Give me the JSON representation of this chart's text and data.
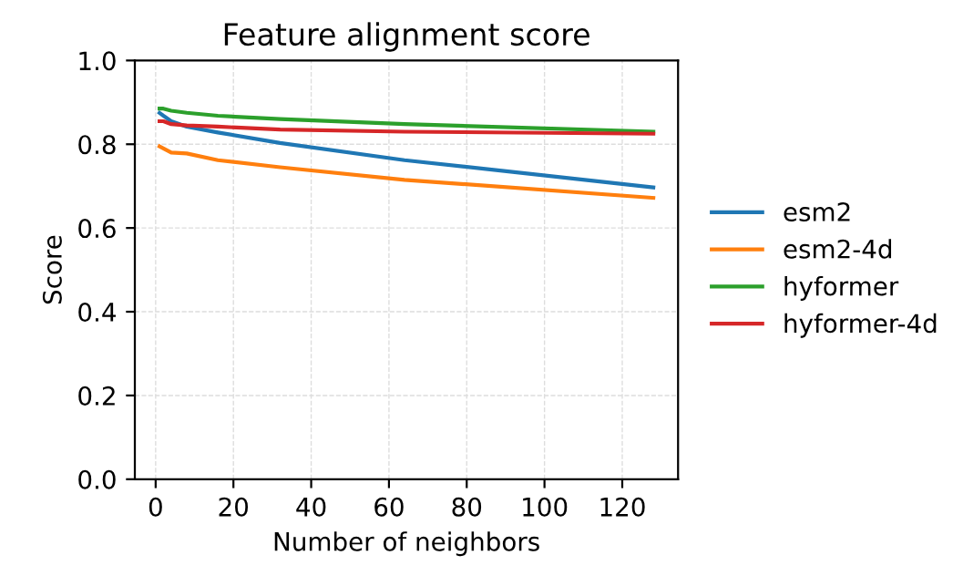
{
  "chart_data": {
    "type": "line",
    "title": "Feature alignment score",
    "xlabel": "Number of neighbors",
    "ylabel": "Score",
    "x": [
      1,
      2,
      4,
      8,
      16,
      32,
      64,
      128
    ],
    "series": [
      {
        "name": "esm2",
        "color": "#1f77b4",
        "values": [
          0.875,
          0.868,
          0.855,
          0.842,
          0.828,
          0.803,
          0.762,
          0.697
        ]
      },
      {
        "name": "esm2-4d",
        "color": "#ff7f0e",
        "values": [
          0.795,
          0.79,
          0.78,
          0.778,
          0.762,
          0.745,
          0.715,
          0.672
        ]
      },
      {
        "name": "hyformer",
        "color": "#2ca02c",
        "values": [
          0.885,
          0.885,
          0.88,
          0.875,
          0.868,
          0.86,
          0.848,
          0.83
        ]
      },
      {
        "name": "hyformer-4d",
        "color": "#d62728",
        "values": [
          0.855,
          0.855,
          0.848,
          0.845,
          0.842,
          0.835,
          0.83,
          0.825
        ]
      }
    ],
    "xlim": [
      -5.35,
      134.35
    ],
    "xticks": [
      0,
      20,
      40,
      60,
      80,
      100,
      120
    ],
    "ylim": [
      0,
      1
    ],
    "yticks": [
      {
        "value": 0,
        "label": "0.0"
      },
      {
        "value": 0.2,
        "label": "0.2"
      },
      {
        "value": 0.4,
        "label": "0.4"
      },
      {
        "value": 0.6,
        "label": "0.6"
      },
      {
        "value": 0.8,
        "label": "0.8"
      },
      {
        "value": 1,
        "label": "1.0"
      }
    ],
    "grid": true,
    "legend": "right",
    "line_style": "solid"
  }
}
